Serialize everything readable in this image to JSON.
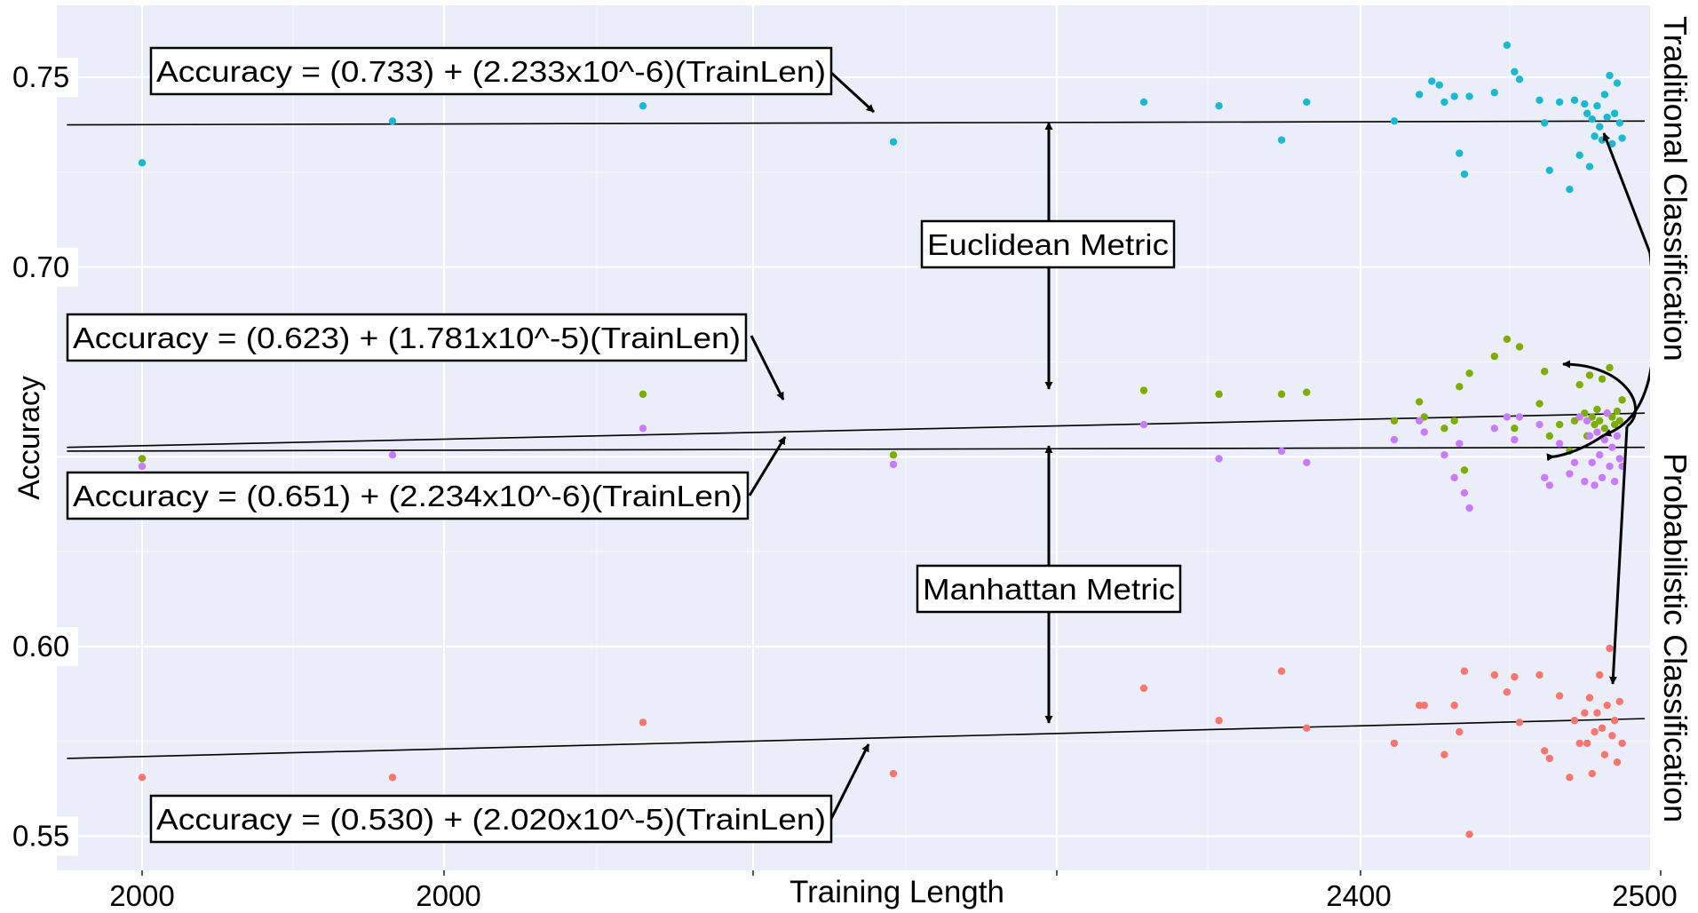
{
  "chart_data": {
    "type": "scatter",
    "title": "",
    "xlabel": "Training Length",
    "ylabel": "Accuracy",
    "x_tick_labels": [
      "2000",
      "2000",
      "2400",
      "2500"
    ],
    "y_ticks": [
      0.55,
      0.6,
      0.7,
      0.75
    ],
    "y_tick_labels": [
      "0.55",
      "0.60",
      "0.70",
      "0.75"
    ],
    "ylim": [
      0.541,
      0.769
    ],
    "grid": true,
    "colors": {
      "panel": "#ebedf8",
      "grid": "#ffffff",
      "series": [
        "#1ab9d2",
        "#7cae00",
        "#c77cff",
        "#f8766d"
      ],
      "line": "#000000"
    },
    "series": [
      {
        "group": "Traditional Classification / Euclidean Metric",
        "color": "#1ab9d2",
        "equation": "Accuracy = (0.733) + (2.233x10^-6)(TrainLen)",
        "fit": [
          [
            -0.3,
            0.7375
          ],
          [
            6.0,
            0.7385
          ]
        ],
        "points": [
          [
            0,
            0.7275
          ],
          [
            1,
            0.7385
          ],
          [
            2,
            0.7425
          ],
          [
            3,
            0.733
          ],
          [
            4,
            0.7435
          ],
          [
            4.3,
            0.7425
          ],
          [
            4.55,
            0.7335
          ],
          [
            4.65,
            0.7435
          ],
          [
            5,
            0.7385
          ],
          [
            5.1,
            0.7455
          ],
          [
            5.15,
            0.749
          ],
          [
            5.18,
            0.748
          ],
          [
            5.2,
            0.7435
          ],
          [
            5.24,
            0.745
          ],
          [
            5.26,
            0.73
          ],
          [
            5.28,
            0.7245
          ],
          [
            5.3,
            0.745
          ],
          [
            5.4,
            0.746
          ],
          [
            5.45,
            0.7585
          ],
          [
            5.48,
            0.7515
          ],
          [
            5.5,
            0.7495
          ],
          [
            5.58,
            0.744
          ],
          [
            5.6,
            0.738
          ],
          [
            5.62,
            0.7255
          ],
          [
            5.66,
            0.7435
          ],
          [
            5.7,
            0.7205
          ],
          [
            5.72,
            0.744
          ],
          [
            5.74,
            0.7295
          ],
          [
            5.76,
            0.743
          ],
          [
            5.77,
            0.7405
          ],
          [
            5.78,
            0.7265
          ],
          [
            5.79,
            0.739
          ],
          [
            5.8,
            0.7345
          ],
          [
            5.81,
            0.7425
          ],
          [
            5.82,
            0.737
          ],
          [
            5.83,
            0.7335
          ],
          [
            5.84,
            0.7455
          ],
          [
            5.85,
            0.7395
          ],
          [
            5.86,
            0.7505
          ],
          [
            5.87,
            0.7325
          ],
          [
            5.88,
            0.7405
          ],
          [
            5.89,
            0.7485
          ],
          [
            5.9,
            0.738
          ],
          [
            5.91,
            0.734
          ]
        ]
      },
      {
        "group": "Probabilistic Classification / Euclidean Metric",
        "color": "#7cae00",
        "equation": "Accuracy = (0.623) + (1.781x10^-5)(TrainLen)",
        "fit": [
          [
            -0.3,
            0.6525
          ],
          [
            6.0,
            0.6615
          ]
        ],
        "points": [
          [
            0,
            0.6495
          ],
          [
            2,
            0.6665
          ],
          [
            3,
            0.6505
          ],
          [
            4,
            0.6675
          ],
          [
            4.3,
            0.6665
          ],
          [
            4.55,
            0.6665
          ],
          [
            4.65,
            0.667
          ],
          [
            5,
            0.6595
          ],
          [
            5.1,
            0.6645
          ],
          [
            5.12,
            0.6605
          ],
          [
            5.2,
            0.6575
          ],
          [
            5.24,
            0.6595
          ],
          [
            5.26,
            0.6685
          ],
          [
            5.28,
            0.6465
          ],
          [
            5.3,
            0.672
          ],
          [
            5.4,
            0.6765
          ],
          [
            5.45,
            0.681
          ],
          [
            5.48,
            0.6575
          ],
          [
            5.5,
            0.679
          ],
          [
            5.58,
            0.664
          ],
          [
            5.6,
            0.6725
          ],
          [
            5.62,
            0.6555
          ],
          [
            5.66,
            0.6585
          ],
          [
            5.7,
            0.6515
          ],
          [
            5.72,
            0.6595
          ],
          [
            5.74,
            0.669
          ],
          [
            5.76,
            0.6615
          ],
          [
            5.77,
            0.6555
          ],
          [
            5.78,
            0.6715
          ],
          [
            5.79,
            0.6605
          ],
          [
            5.8,
            0.6585
          ],
          [
            5.81,
            0.6625
          ],
          [
            5.82,
            0.6595
          ],
          [
            5.83,
            0.6705
          ],
          [
            5.84,
            0.6575
          ],
          [
            5.85,
            0.6615
          ],
          [
            5.86,
            0.6735
          ],
          [
            5.87,
            0.6605
          ],
          [
            5.88,
            0.6585
          ],
          [
            5.89,
            0.662
          ],
          [
            5.9,
            0.6595
          ],
          [
            5.91,
            0.665
          ]
        ]
      },
      {
        "group": "Traditional Classification / Manhattan Metric",
        "color": "#c77cff",
        "equation": "Accuracy = (0.651) + (2.234x10^-6)(TrainLen)",
        "fit": [
          [
            -0.3,
            0.6515
          ],
          [
            6.0,
            0.6525
          ]
        ],
        "points": [
          [
            0,
            0.6475
          ],
          [
            1,
            0.6505
          ],
          [
            2,
            0.6575
          ],
          [
            3,
            0.648
          ],
          [
            4,
            0.6585
          ],
          [
            4.3,
            0.6495
          ],
          [
            4.55,
            0.6515
          ],
          [
            4.65,
            0.6485
          ],
          [
            5,
            0.6545
          ],
          [
            5.1,
            0.6595
          ],
          [
            5.12,
            0.6565
          ],
          [
            5.2,
            0.6505
          ],
          [
            5.24,
            0.6445
          ],
          [
            5.26,
            0.6535
          ],
          [
            5.28,
            0.6405
          ],
          [
            5.3,
            0.6365
          ],
          [
            5.4,
            0.6575
          ],
          [
            5.45,
            0.6605
          ],
          [
            5.48,
            0.6545
          ],
          [
            5.5,
            0.6605
          ],
          [
            5.58,
            0.6585
          ],
          [
            5.6,
            0.6445
          ],
          [
            5.62,
            0.6425
          ],
          [
            5.66,
            0.6535
          ],
          [
            5.7,
            0.6455
          ],
          [
            5.72,
            0.6485
          ],
          [
            5.74,
            0.6605
          ],
          [
            5.76,
            0.6435
          ],
          [
            5.77,
            0.6595
          ],
          [
            5.78,
            0.6555
          ],
          [
            5.79,
            0.6485
          ],
          [
            5.8,
            0.6425
          ],
          [
            5.81,
            0.6565
          ],
          [
            5.82,
            0.6505
          ],
          [
            5.83,
            0.6445
          ],
          [
            5.84,
            0.6545
          ],
          [
            5.85,
            0.6615
          ],
          [
            5.86,
            0.6475
          ],
          [
            5.87,
            0.6525
          ],
          [
            5.88,
            0.6435
          ],
          [
            5.89,
            0.6555
          ],
          [
            5.9,
            0.6495
          ],
          [
            5.91,
            0.6475
          ]
        ]
      },
      {
        "group": "Probabilistic Classification / Manhattan Metric",
        "color": "#f8766d",
        "equation": "Accuracy = (0.530) + (2.020x10^-5)(TrainLen)",
        "fit": [
          [
            -0.3,
            0.5705
          ],
          [
            6.0,
            0.581
          ]
        ],
        "points": [
          [
            0,
            0.5655
          ],
          [
            1,
            0.5655
          ],
          [
            2,
            0.58
          ],
          [
            3,
            0.5665
          ],
          [
            4,
            0.589
          ],
          [
            4.3,
            0.5805
          ],
          [
            4.55,
            0.5935
          ],
          [
            4.65,
            0.5785
          ],
          [
            5,
            0.5745
          ],
          [
            5.1,
            0.5845
          ],
          [
            5.12,
            0.5845
          ],
          [
            5.2,
            0.5715
          ],
          [
            5.24,
            0.5845
          ],
          [
            5.26,
            0.5775
          ],
          [
            5.28,
            0.5935
          ],
          [
            5.3,
            0.5505
          ],
          [
            5.4,
            0.5925
          ],
          [
            5.45,
            0.588
          ],
          [
            5.48,
            0.592
          ],
          [
            5.5,
            0.58
          ],
          [
            5.58,
            0.5925
          ],
          [
            5.6,
            0.5725
          ],
          [
            5.62,
            0.5705
          ],
          [
            5.66,
            0.587
          ],
          [
            5.7,
            0.5655
          ],
          [
            5.72,
            0.5805
          ],
          [
            5.74,
            0.5745
          ],
          [
            5.76,
            0.5825
          ],
          [
            5.77,
            0.5745
          ],
          [
            5.78,
            0.5865
          ],
          [
            5.79,
            0.5665
          ],
          [
            5.8,
            0.5775
          ],
          [
            5.81,
            0.5825
          ],
          [
            5.82,
            0.5925
          ],
          [
            5.83,
            0.5785
          ],
          [
            5.84,
            0.5715
          ],
          [
            5.85,
            0.5845
          ],
          [
            5.86,
            0.5995
          ],
          [
            5.87,
            0.5765
          ],
          [
            5.88,
            0.5805
          ],
          [
            5.89,
            0.5695
          ],
          [
            5.9,
            0.5855
          ],
          [
            5.91,
            0.5745
          ]
        ]
      }
    ],
    "annotations": {
      "euclidean": "Euclidean Metric",
      "manhattan": "Manhattan Metric",
      "traditional": "Traditional Classification",
      "probabilistic": "Probabilistic Classification"
    }
  }
}
